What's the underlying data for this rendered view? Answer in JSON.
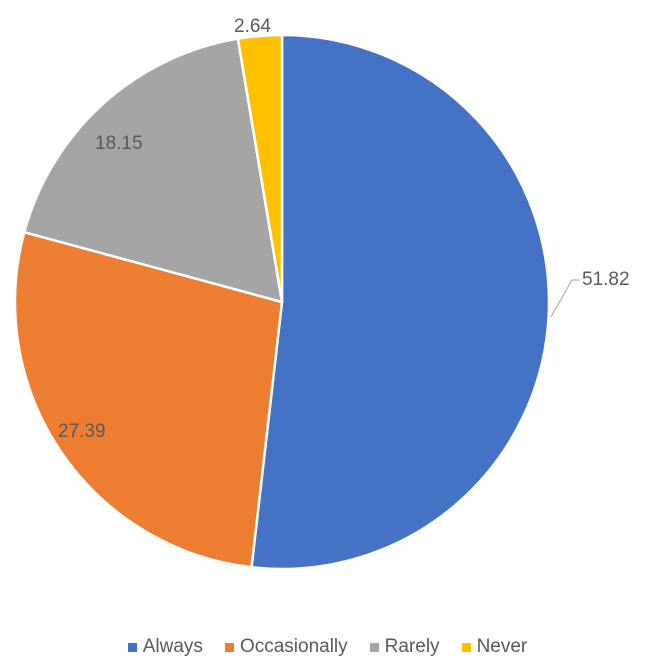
{
  "chart_data": {
    "type": "pie",
    "categories": [
      "Always",
      "Occasionally",
      "Rarely",
      "Never"
    ],
    "values": [
      51.82,
      27.39,
      18.15,
      2.64
    ],
    "colors": [
      "#4472C4",
      "#ED7D31",
      "#A5A5A5",
      "#FFC000"
    ],
    "data_labels": [
      "51.82",
      "27.39",
      "18.15",
      "2.64"
    ],
    "legend": [
      {
        "label": "Always",
        "color": "#4472C4"
      },
      {
        "label": "Occasionally",
        "color": "#ED7D31"
      },
      {
        "label": "Rarely",
        "color": "#A5A5A5"
      },
      {
        "label": "Never",
        "color": "#FFC000"
      }
    ],
    "legend_position": "bottom",
    "title": ""
  }
}
